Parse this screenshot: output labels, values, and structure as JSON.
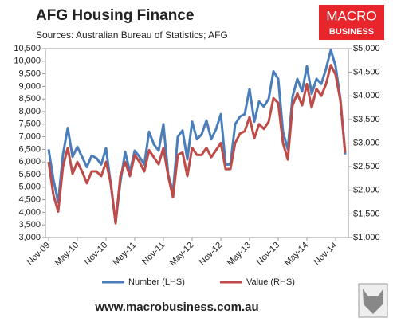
{
  "chart_data": {
    "type": "line",
    "title": "AFG Housing Finance",
    "subtitle": "Sources: Australian Bureau of Statistics; AFG",
    "logo": [
      "MACRO",
      "BUSINESS"
    ],
    "footer": "www.macrobusiness.com.au",
    "categories": [
      "Nov-09",
      null,
      null,
      null,
      null,
      null,
      "May-10",
      null,
      null,
      null,
      null,
      null,
      "Nov-10",
      null,
      null,
      null,
      null,
      null,
      "May-11",
      null,
      null,
      null,
      null,
      null,
      "Nov-11",
      null,
      null,
      null,
      null,
      null,
      "May-12",
      null,
      null,
      null,
      null,
      null,
      "Nov-12",
      null,
      null,
      null,
      null,
      null,
      "May-13",
      null,
      null,
      null,
      null,
      null,
      "Nov-13",
      null,
      null,
      null,
      null,
      null,
      "May-14",
      null,
      null,
      null,
      null,
      null,
      "Nov-14",
      null,
      null
    ],
    "series": [
      {
        "name": "Number (LHS)",
        "color": "#4a7ebb",
        "axis": "y",
        "values": [
          6500,
          5300,
          4400,
          6300,
          7350,
          6200,
          6600,
          6200,
          5800,
          6250,
          6150,
          5900,
          6550,
          5100,
          3600,
          5200,
          6400,
          5600,
          6450,
          6200,
          5900,
          7200,
          6700,
          6450,
          7500,
          5500,
          4800,
          7000,
          7250,
          6100,
          7600,
          6900,
          7100,
          7650,
          6900,
          7300,
          7900,
          5900,
          5900,
          7500,
          7800,
          7900,
          8900,
          7600,
          8400,
          8200,
          8500,
          9600,
          9300,
          7200,
          6500,
          8600,
          9300,
          8800,
          9800,
          8700,
          9300,
          9100,
          9700,
          10450,
          9800,
          8500,
          6300
        ]
      },
      {
        "name": "Value (RHS)",
        "color": "#be4b48",
        "axis": "y2",
        "values": [
          2600,
          1900,
          1550,
          2500,
          2900,
          2350,
          2600,
          2400,
          2150,
          2400,
          2400,
          2300,
          2600,
          2150,
          1300,
          2300,
          2600,
          2300,
          2750,
          2600,
          2400,
          2850,
          2700,
          2550,
          2900,
          2300,
          1850,
          2750,
          2800,
          2300,
          2900,
          2750,
          2750,
          2900,
          2700,
          2850,
          3000,
          2450,
          2450,
          3000,
          3200,
          3250,
          3550,
          3100,
          3400,
          3300,
          3450,
          3950,
          3850,
          3000,
          2650,
          3800,
          4050,
          3800,
          4250,
          3750,
          4150,
          4000,
          4250,
          4650,
          4450,
          3900,
          2800
        ]
      }
    ],
    "ylim": [
      3000,
      10500
    ],
    "yticks": [
      {
        "value": 3000,
        "label": "3,000"
      },
      {
        "value": 3500,
        "label": "3,500"
      },
      {
        "value": 4000,
        "label": "4,000"
      },
      {
        "value": 4500,
        "label": "4,500"
      },
      {
        "value": 5000,
        "label": "5,000"
      },
      {
        "value": 5500,
        "label": "5,500"
      },
      {
        "value": 6000,
        "label": "6,000"
      },
      {
        "value": 6500,
        "label": "6,500"
      },
      {
        "value": 7000,
        "label": "7,000"
      },
      {
        "value": 7500,
        "label": "7,500"
      },
      {
        "value": 8000,
        "label": "8,000"
      },
      {
        "value": 8500,
        "label": "8,500"
      },
      {
        "value": 9000,
        "label": "9,000"
      },
      {
        "value": 9500,
        "label": "9,500"
      },
      {
        "value": 10000,
        "label": "10,000"
      },
      {
        "value": 10500,
        "label": "10,500"
      }
    ],
    "y2lim": [
      1000,
      5000
    ],
    "y2ticks": [
      {
        "value": 1000,
        "label": "$1,000"
      },
      {
        "value": 1500,
        "label": "$1,500"
      },
      {
        "value": 2000,
        "label": "$2,000"
      },
      {
        "value": 2500,
        "label": "$2,500"
      },
      {
        "value": 3000,
        "label": "$3,000"
      },
      {
        "value": 3500,
        "label": "$3,500"
      },
      {
        "value": 4000,
        "label": "$4,000"
      },
      {
        "value": 4500,
        "label": "$4,500"
      },
      {
        "value": 5000,
        "label": "$5,000"
      }
    ],
    "legend": "bottom"
  }
}
